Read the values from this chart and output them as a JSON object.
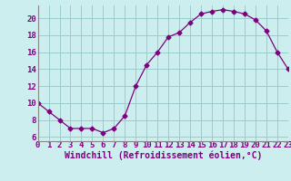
{
  "x": [
    0,
    1,
    2,
    3,
    4,
    5,
    6,
    7,
    8,
    9,
    10,
    11,
    12,
    13,
    14,
    15,
    16,
    17,
    18,
    19,
    20,
    21,
    22,
    23
  ],
  "y": [
    10,
    9,
    8,
    7,
    7,
    7,
    6.5,
    7,
    8.5,
    12,
    14.5,
    16,
    17.8,
    18.3,
    19.5,
    20.5,
    20.8,
    21,
    20.8,
    20.5,
    19.8,
    18.5,
    16,
    14
  ],
  "line_color": "#800080",
  "marker": "D",
  "marker_size": 2.5,
  "bg_color": "#cceeee",
  "grid_color": "#99cccc",
  "xlabel": "Windchill (Refroidissement éolien,°C)",
  "tick_color": "#800080",
  "label_color": "#800080",
  "ylim": [
    5.5,
    21.5
  ],
  "xlim": [
    0,
    23
  ],
  "yticks": [
    6,
    8,
    10,
    12,
    14,
    16,
    18,
    20
  ],
  "xticks": [
    0,
    1,
    2,
    3,
    4,
    5,
    6,
    7,
    8,
    9,
    10,
    11,
    12,
    13,
    14,
    15,
    16,
    17,
    18,
    19,
    20,
    21,
    22,
    23
  ],
  "font_size": 6.5,
  "xlabel_font_size": 7
}
